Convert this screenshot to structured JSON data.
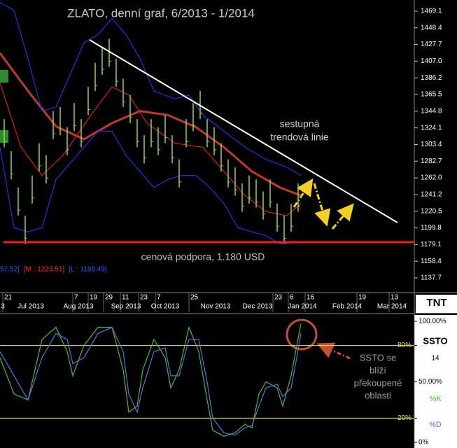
{
  "chart_data": [
    {
      "type": "ohlc",
      "title": "ZLATO, denní graf, 6/2013 - 1/2014",
      "color": "#8fd84a",
      "xlim": [
        0,
        148
      ],
      "ylim": [
        1119.4,
        1483.0
      ],
      "x": [
        1.5,
        4,
        6.5,
        9,
        11.5,
        14,
        16.5,
        19,
        21.5,
        24,
        26.5,
        29,
        31.5,
        34,
        36.5,
        39,
        41.5,
        44,
        46.5,
        49,
        51.5,
        54,
        56.5,
        59,
        61.5,
        64,
        66.5,
        69,
        71.5,
        74,
        76.5,
        79,
        81.5,
        84,
        86.5,
        89,
        91.5,
        94,
        96.5,
        99,
        101.5,
        104,
        106.5
      ],
      "high": [
        1335,
        1295,
        1250,
        1215,
        1265,
        1305,
        1290,
        1345,
        1350,
        1325,
        1355,
        1335,
        1375,
        1405,
        1425,
        1435,
        1410,
        1385,
        1365,
        1335,
        1315,
        1335,
        1325,
        1340,
        1315,
        1285,
        1335,
        1355,
        1370,
        1335,
        1325,
        1305,
        1285,
        1275,
        1255,
        1265,
        1260,
        1245,
        1260,
        1230,
        1215,
        1230,
        1255
      ],
      "low": [
        1300,
        1260,
        1215,
        1180,
        1230,
        1270,
        1255,
        1310,
        1315,
        1290,
        1320,
        1300,
        1340,
        1370,
        1390,
        1400,
        1375,
        1350,
        1330,
        1300,
        1280,
        1300,
        1290,
        1305,
        1280,
        1250,
        1300,
        1320,
        1335,
        1300,
        1290,
        1270,
        1250,
        1240,
        1220,
        1230,
        1225,
        1210,
        1225,
        1195,
        1180,
        1195,
        1220
      ],
      "overlays": [
        {
          "color": "#c0392b",
          "width": 3,
          "x": [
            0,
            10,
            20,
            30,
            40,
            50,
            60,
            70,
            80,
            90,
            100,
            107.5
          ],
          "values": [
            1417,
            1370,
            1326,
            1310,
            1330,
            1345,
            1340,
            1325,
            1300,
            1270,
            1250,
            1240
          ]
        },
        {
          "color": "#d42020",
          "width": 1.2,
          "x": [
            0,
            7.5,
            15,
            22.5,
            32.5,
            40,
            46,
            52.5,
            62.5,
            72.5,
            80,
            87.5,
            95,
            102.5,
            107.5
          ],
          "values": [
            1380,
            1300,
            1265,
            1290,
            1340,
            1375,
            1365,
            1330,
            1305,
            1300,
            1270,
            1240,
            1220,
            1215,
            1230
          ]
        },
        {
          "color": "#2233dd",
          "width": 1.2,
          "x": [
            0,
            5,
            10,
            15,
            20,
            25,
            30,
            35,
            40,
            45,
            50,
            55,
            62.5,
            67.5,
            72.5,
            80,
            87.5,
            95,
            102.5,
            107.5
          ],
          "values": [
            1480,
            1470,
            1410,
            1345,
            1350,
            1390,
            1430,
            1440,
            1460,
            1440,
            1410,
            1370,
            1360,
            1365,
            1340,
            1320,
            1300,
            1285,
            1275,
            1265
          ]
        },
        {
          "color": "#2233dd",
          "width": 1.2,
          "x": [
            0,
            5,
            10,
            15,
            20,
            25,
            30,
            35,
            40,
            45,
            50,
            55,
            60,
            65,
            70,
            75,
            80,
            85,
            90,
            95,
            100,
            107.5
          ],
          "values": [
            1300,
            1200,
            1195,
            1200,
            1260,
            1280,
            1300,
            1320,
            1320,
            1290,
            1270,
            1250,
            1260,
            1265,
            1265,
            1250,
            1230,
            1200,
            1195,
            1190,
            1180,
            1182
          ]
        }
      ],
      "support_level": 1182,
      "support_color": "#ff1a1a",
      "trendline": {
        "color": "#ffffff",
        "x": [
          32,
          142
        ],
        "values": [
          1433.4,
          1206.4
        ]
      },
      "trendline_label": [
        "sestupná",
        "trendová linie"
      ],
      "support_label": "cenová podpora, 1.180 USD",
      "legend_texts": [
        {
          "text": "57.52]",
          "color": "#3355ff"
        },
        {
          "text": "[M : 1223.51]",
          "color": "#ff2a2a"
        },
        {
          "text": "[L : 1189.49]",
          "color": "#3355ff"
        }
      ],
      "yticks": [
        1469.1,
        1448.4,
        1427.7,
        {
          "value": 1407.0,
          "label": "1407.0"
        },
        1386.2,
        1365.5,
        1344.8,
        1324.1,
        1303.4,
        1282.7,
        {
          "value": 1262.0,
          "label": "1262.0"
        },
        1241.2,
        1220.5,
        1199.8,
        1179.1,
        1158.4,
        1137.7
      ],
      "xticks": [
        {
          "value": 1,
          "label": "21"
        },
        {
          "value": 26,
          "label": "7"
        },
        {
          "value": 31.5,
          "label": "19"
        },
        {
          "value": 37,
          "label": "29"
        },
        {
          "value": 43,
          "label": "11"
        },
        {
          "value": 49.5,
          "label": "23"
        },
        {
          "value": 55.5,
          "label": "7"
        },
        {
          "value": 67.5,
          "label": "25"
        },
        {
          "value": 97.5,
          "label": "23"
        },
        {
          "value": 103,
          "label": "6"
        },
        {
          "value": 109,
          "label": "16"
        },
        {
          "value": 127.5,
          "label": "19"
        },
        {
          "value": 139,
          "label": "13"
        }
      ],
      "x_month_ticks": [
        {
          "value": 1,
          "label": "3"
        },
        {
          "value": 11,
          "label": "Jul 2013"
        },
        {
          "value": 28,
          "label": "Aug 2013"
        },
        {
          "value": 45,
          "label": "Sep 2013"
        },
        {
          "value": 59,
          "label": "Oct 2013"
        },
        {
          "value": 77,
          "label": "Nov 2013"
        },
        {
          "value": 92,
          "label": "Dec 2013"
        },
        {
          "value": 108,
          "label": "Jan 2014"
        },
        {
          "value": 124,
          "label": "Feb 2014"
        },
        {
          "value": 140,
          "label": "Mar 2014"
        }
      ],
      "logo": "TNT"
    },
    {
      "type": "line",
      "title": "SSTO",
      "period": "14",
      "xlim": [
        0,
        148
      ],
      "ylim": [
        0,
        100
      ],
      "levels": [
        80,
        20
      ],
      "level_color": "#e8e85a",
      "series": [
        {
          "name": "%K",
          "color": "#3cc03c",
          "x": [
            0,
            5,
            10,
            15,
            20,
            24,
            26,
            30,
            35,
            40,
            44,
            46,
            49,
            51,
            55,
            59,
            61,
            64,
            67.5,
            71,
            74,
            76,
            80,
            84,
            87.5,
            90,
            92.5,
            95,
            99,
            101,
            104,
            106,
            107.5
          ],
          "values": [
            70,
            40,
            35,
            85,
            95,
            75,
            55,
            80,
            95,
            95,
            60,
            25,
            30,
            60,
            85,
            70,
            45,
            60,
            95,
            75,
            35,
            10,
            5,
            8,
            15,
            12,
            40,
            50,
            45,
            30,
            55,
            80,
            98
          ]
        },
        {
          "name": "%D",
          "color": "#6a6ae0",
          "x": [
            0,
            5,
            10,
            15,
            20,
            24,
            26,
            30,
            35,
            40,
            44,
            46,
            49,
            51,
            55,
            59,
            61,
            64,
            67.5,
            71,
            74,
            76,
            80,
            84,
            87.5,
            90,
            92.5,
            95,
            99,
            101,
            104,
            106,
            107.5
          ],
          "values": [
            75,
            55,
            35,
            70,
            90,
            85,
            65,
            70,
            90,
            95,
            75,
            40,
            25,
            45,
            75,
            78,
            55,
            55,
            85,
            85,
            50,
            20,
            8,
            6,
            12,
            14,
            30,
            45,
            48,
            38,
            45,
            70,
            90
          ]
        }
      ],
      "yticks": [
        {
          "value": 100,
          "label": "100.00%"
        },
        {
          "value": 80,
          "label": "80%"
        },
        {
          "value": 50,
          "label": "50.00%"
        },
        {
          "value": 20,
          "label": "20%"
        },
        {
          "value": 0,
          "label": "0%"
        }
      ],
      "annotation": [
        "SSTO se",
        "blíží",
        "překoupené",
        "oblasti"
      ]
    }
  ]
}
